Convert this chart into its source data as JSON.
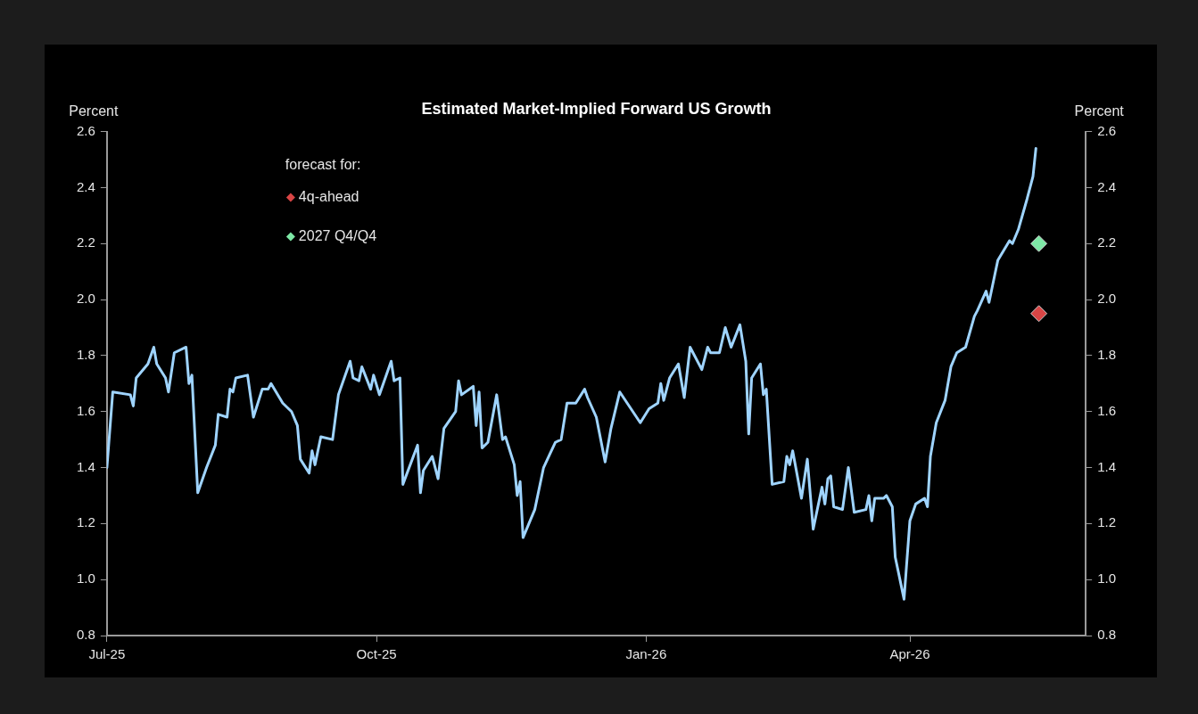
{
  "chart_data": {
    "type": "line",
    "title": "Estimated Market-Implied Forward US Growth",
    "ylabel": "Percent",
    "y2label": "Percent",
    "legend_title": "forecast for:",
    "legend": "top left",
    "grid": false,
    "xlim": [
      "2025-07-01",
      "2026-05-31"
    ],
    "xticks": [
      {
        "value": "2025-07-01",
        "label": "Jul-25"
      },
      {
        "value": "2025-10-01",
        "label": "Oct-25"
      },
      {
        "value": "2026-01-01",
        "label": "Jan-26"
      },
      {
        "value": "2026-04-01",
        "label": "Apr-26"
      }
    ],
    "ylim": [
      0.8,
      2.6
    ],
    "yticks": [
      0.8,
      {
        "value": 1,
        "label": "1.0"
      },
      1.2,
      1.4,
      1.6,
      1.8,
      {
        "value": 2,
        "label": "2.0"
      },
      2.2,
      2.4,
      2.6
    ],
    "y2lim": [
      0.8,
      2.6
    ],
    "y2ticks": [
      0.8,
      {
        "value": 1,
        "label": "1.0"
      },
      1.2,
      1.4,
      1.6,
      1.8,
      {
        "value": 2,
        "label": "2.0"
      },
      2.2,
      2.4,
      2.6
    ],
    "series": [
      {
        "color": "#9fd4ff",
        "line_style": "solid",
        "x": [
          "2025-07-01",
          "2025-07-03",
          "2025-07-09",
          "2025-07-10",
          "2025-07-11",
          "2025-07-15",
          "2025-07-17",
          "2025-07-18",
          "2025-07-21",
          "2025-07-22",
          "2025-07-24",
          "2025-07-28",
          "2025-07-29",
          "2025-07-30",
          "2025-08-01",
          "2025-08-04",
          "2025-08-07",
          "2025-08-08",
          "2025-08-11",
          "2025-08-12",
          "2025-08-13",
          "2025-08-14",
          "2025-08-18",
          "2025-08-20",
          "2025-08-23",
          "2025-08-25",
          "2025-08-26",
          "2025-08-30",
          "2025-09-02",
          "2025-09-04",
          "2025-09-05",
          "2025-09-08",
          "2025-09-09",
          "2025-09-10",
          "2025-09-12",
          "2025-09-16",
          "2025-09-18",
          "2025-09-22",
          "2025-09-23",
          "2025-09-25",
          "2025-09-26",
          "2025-09-29",
          "2025-09-30",
          "2025-10-02",
          "2025-10-05",
          "2025-10-06",
          "2025-10-07",
          "2025-10-09",
          "2025-10-10",
          "2025-10-15",
          "2025-10-16",
          "2025-10-17",
          "2025-10-20",
          "2025-10-22",
          "2025-10-24",
          "2025-10-28",
          "2025-10-29",
          "2025-10-30",
          "2025-11-03",
          "2025-11-04",
          "2025-11-05",
          "2025-11-06",
          "2025-11-08",
          "2025-11-11",
          "2025-11-13",
          "2025-11-14",
          "2025-11-17",
          "2025-11-18",
          "2025-11-19",
          "2025-11-20",
          "2025-11-24",
          "2025-11-27",
          "2025-12-01",
          "2025-12-03",
          "2025-12-05",
          "2025-12-08",
          "2025-12-11",
          "2025-12-12",
          "2025-12-15",
          "2025-12-18",
          "2025-12-20",
          "2025-12-23",
          "2025-12-30",
          "2026-01-02",
          "2026-01-05",
          "2026-01-06",
          "2026-01-07",
          "2026-01-09",
          "2026-01-12",
          "2026-01-14",
          "2026-01-16",
          "2026-01-20",
          "2026-01-22",
          "2026-01-23",
          "2026-01-26",
          "2026-01-28",
          "2026-01-30",
          "2026-02-02",
          "2026-02-04",
          "2026-02-05",
          "2026-02-06",
          "2026-02-09",
          "2026-02-10",
          "2026-02-11",
          "2026-02-13",
          "2026-02-17",
          "2026-02-18",
          "2026-02-19",
          "2026-02-20",
          "2026-02-23",
          "2026-02-25",
          "2026-02-27",
          "2026-03-02",
          "2026-03-03",
          "2026-03-04",
          "2026-03-05",
          "2026-03-06",
          "2026-03-09",
          "2026-03-11",
          "2026-03-13",
          "2026-03-17",
          "2026-03-18",
          "2026-03-19",
          "2026-03-20",
          "2026-03-23",
          "2026-03-24",
          "2026-03-26",
          "2026-03-27",
          "2026-03-30",
          "2026-04-01",
          "2026-04-03",
          "2026-04-06",
          "2026-04-07",
          "2026-04-08",
          "2026-04-10",
          "2026-04-13",
          "2026-04-15",
          "2026-04-17",
          "2026-04-20",
          "2026-04-23",
          "2026-04-24",
          "2026-04-27",
          "2026-04-28",
          "2026-04-30",
          "2026-05-01",
          "2026-05-05",
          "2026-05-06",
          "2026-05-08",
          "2026-05-11",
          "2026-05-13",
          "2026-05-14"
        ],
        "values": [
          1.4,
          1.67,
          1.66,
          1.62,
          1.72,
          1.77,
          1.83,
          1.77,
          1.72,
          1.67,
          1.81,
          1.83,
          1.7,
          1.73,
          1.31,
          1.4,
          1.48,
          1.59,
          1.58,
          1.68,
          1.67,
          1.72,
          1.73,
          1.58,
          1.68,
          1.68,
          1.7,
          1.63,
          1.6,
          1.55,
          1.43,
          1.38,
          1.46,
          1.41,
          1.51,
          1.5,
          1.66,
          1.78,
          1.72,
          1.71,
          1.76,
          1.68,
          1.73,
          1.66,
          1.75,
          1.78,
          1.71,
          1.72,
          1.34,
          1.48,
          1.31,
          1.39,
          1.44,
          1.36,
          1.54,
          1.6,
          1.71,
          1.66,
          1.69,
          1.55,
          1.67,
          1.47,
          1.49,
          1.66,
          1.5,
          1.51,
          1.41,
          1.3,
          1.35,
          1.15,
          1.25,
          1.4,
          1.49,
          1.5,
          1.63,
          1.63,
          1.68,
          1.65,
          1.58,
          1.42,
          1.54,
          1.67,
          1.56,
          1.61,
          1.63,
          1.7,
          1.64,
          1.72,
          1.77,
          1.65,
          1.83,
          1.75,
          1.83,
          1.81,
          1.81,
          1.9,
          1.83,
          1.91,
          1.78,
          1.52,
          1.72,
          1.77,
          1.66,
          1.68,
          1.34,
          1.35,
          1.44,
          1.41,
          1.46,
          1.29,
          1.43,
          1.18,
          1.33,
          1.27,
          1.36,
          1.37,
          1.26,
          1.25,
          1.4,
          1.24,
          1.25,
          1.3,
          1.21,
          1.29,
          1.29,
          1.3,
          1.26,
          1.08,
          0.93,
          1.21,
          1.27,
          1.29,
          1.26,
          1.44,
          1.56,
          1.64,
          1.76,
          1.81,
          1.83,
          1.94,
          1.96,
          2.03,
          1.99,
          2.09,
          2.14,
          2.21,
          2.2,
          2.25,
          2.36,
          2.44,
          2.54
        ]
      },
      {
        "type": "scatter",
        "name": "4q-ahead",
        "color": "#d94545",
        "marker": "diamond",
        "x": [
          "2026-05-15"
        ],
        "values": [
          1.95
        ]
      },
      {
        "type": "scatter",
        "name": "2027 Q4/Q4",
        "color": "#7ee8a6",
        "marker": "diamond",
        "x": [
          "2026-05-15"
        ],
        "values": [
          2.2
        ]
      }
    ]
  }
}
